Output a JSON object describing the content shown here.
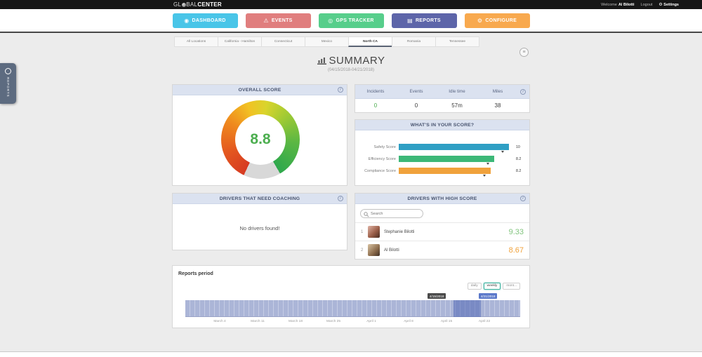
{
  "topbar": {
    "logo": {
      "prefix": "GL",
      "mid": "BAL",
      "suffix": "CENTER"
    },
    "welcome_label": "Welcome",
    "user_name": "Al Bilotti",
    "logout_label": "Logout",
    "settings_label": "Settings"
  },
  "icons": {
    "gear": "⚙",
    "grid_toggle": "≡",
    "info": "i"
  },
  "nav": {
    "active": "REPORTS",
    "items": [
      {
        "label": "DASHBOARD",
        "icon": "◉",
        "color": "#49c5e8"
      },
      {
        "label": "EVENTS",
        "icon": "⚠",
        "color": "#e07e7e"
      },
      {
        "label": "GPS TRACKER",
        "icon": "◎",
        "color": "#57ce8b"
      },
      {
        "label": "REPORTS",
        "icon": "▤",
        "color": "#5d65a9"
      },
      {
        "label": "CONFIGURE",
        "icon": "⚙",
        "color": "#f8a94e"
      }
    ]
  },
  "location_tabs": [
    "All Locations",
    "California - Hamilton",
    "Connecticut",
    "Mexico",
    "North CA",
    "Romania",
    "Tennessee"
  ],
  "active_tab": "North CA",
  "drawer": {
    "label": "REPORTS"
  },
  "summary": {
    "title": "SUMMARY",
    "date_range": "(04/15/2018-04/21/2018)"
  },
  "overall_score": {
    "title": "OVERALL SCORE",
    "value": "8.8",
    "value_color": "#4cae4f"
  },
  "stats": {
    "columns": [
      {
        "label": "Incidents",
        "value": "0",
        "color": "#4cae4f"
      },
      {
        "label": "Events",
        "value": "0",
        "color": "#3a3a3a"
      },
      {
        "label": "Idle time",
        "value": "57m",
        "color": "#3a3a3a"
      },
      {
        "label": "Miles",
        "value": "38",
        "color": "#3a3a3a"
      }
    ]
  },
  "score_breakdown": {
    "title": "WHAT'S IN YOUR SCORE?",
    "rows": [
      {
        "label": "Safety Score",
        "value": "10",
        "color": "#2f9fc4",
        "percent": 96
      },
      {
        "label": "Efficiency Score",
        "value": "8.2",
        "color": "#3cb878",
        "percent": 83
      },
      {
        "label": "Compliance Score",
        "value": "8.2",
        "color": "#f0a23c",
        "percent": 80
      }
    ]
  },
  "coaching": {
    "title": "DRIVERS THAT NEED COACHING",
    "empty_message": "No drivers found!"
  },
  "high_score": {
    "title": "DRIVERS WITH HIGH SCORE",
    "search_placeholder": "Search",
    "drivers": [
      {
        "rank": "1",
        "name": "Stephanie Bilotti",
        "score": "9.33",
        "score_color": "#82c47e"
      },
      {
        "rank": "2",
        "name": "Al Bilotti",
        "score": "8.67",
        "score_color": "#f0a23c"
      }
    ]
  },
  "reports_period": {
    "title": "Reports period",
    "range_buttons": [
      "daily",
      "weekly",
      "mont..."
    ],
    "active_range": "weekly",
    "start_tooltip": "4/15/2018",
    "end_tooltip": "4/21/2018",
    "axis_labels": [
      "March 4",
      "March 11",
      "March 18",
      "March 25",
      "April 1",
      "April 8",
      "April 15",
      "April 22"
    ]
  },
  "chart_data": [
    {
      "type": "pie",
      "variant": "gauge-donut",
      "title": "OVERALL SCORE",
      "value": 8.8,
      "min": 0,
      "max": 10,
      "value_color": "#4cae4f",
      "segment_colors": [
        "#d63a22",
        "#ef8a1e",
        "#f2c223",
        "#a3cb33",
        "#2ea84d"
      ],
      "unfilled_color": "#d8d8d8"
    },
    {
      "type": "bar",
      "orientation": "horizontal",
      "title": "WHAT'S IN YOUR SCORE?",
      "categories": [
        "Safety Score",
        "Efficiency Score",
        "Compliance Score"
      ],
      "values": [
        10,
        8.2,
        8.2
      ],
      "bar_colors": [
        "#2f9fc4",
        "#3cb878",
        "#f0a23c"
      ],
      "xlim": [
        0,
        10
      ],
      "grid": false,
      "legend": false
    },
    {
      "type": "area",
      "title": "Reports period",
      "x": [
        "March 4",
        "March 11",
        "March 18",
        "March 25",
        "April 1",
        "April 8",
        "April 15",
        "April 22"
      ],
      "values": [
        1,
        1,
        1,
        1,
        1,
        1,
        1,
        1
      ],
      "ylim": [
        0,
        1
      ],
      "selected_range": {
        "start": "4/15/2018",
        "end": "4/21/2018"
      },
      "band_color": "#abb5d7",
      "selected_color": "#7e8ec8",
      "grid": false,
      "legend": false
    }
  ]
}
